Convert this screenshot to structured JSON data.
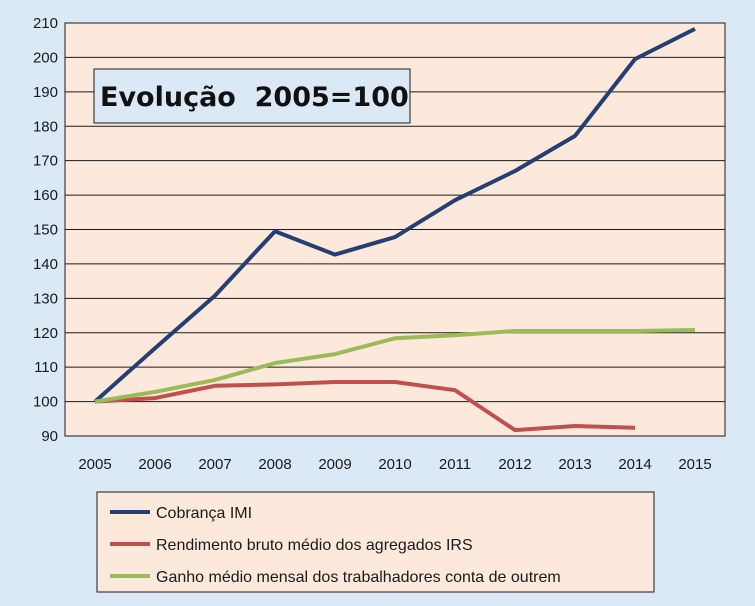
{
  "chart_data": {
    "type": "line",
    "title": "Evolução  2005=100",
    "xlabel": "",
    "ylabel": "",
    "categories": [
      "2005",
      "2006",
      "2007",
      "2008",
      "2009",
      "2010",
      "2011",
      "2012",
      "2013",
      "2014",
      "2015"
    ],
    "ylim": [
      90,
      210
    ],
    "yticks": [
      "90",
      "100",
      "110",
      "120",
      "130",
      "140",
      "150",
      "160",
      "170",
      "180",
      "190",
      "200",
      "210"
    ],
    "grid": true,
    "legend_position": "bottom",
    "series": [
      {
        "name": "Cobrança IMI",
        "color": "#243f73",
        "values": [
          100,
          115.5,
          130.8,
          149.5,
          142.7,
          147.8,
          158.5,
          167,
          177.2,
          199.5,
          208.3
        ]
      },
      {
        "name": "Rendimento bruto médio dos agregados IRS",
        "color": "#c0504d",
        "values": [
          100,
          101,
          104.6,
          105,
          105.7,
          105.7,
          103.3,
          91.7,
          92.9,
          92.4,
          null
        ]
      },
      {
        "name": "Ganho médio mensal dos trabalhadores conta de outrem",
        "color": "#9bbb59",
        "values": [
          100,
          102.8,
          106.3,
          111.2,
          113.8,
          118.4,
          119.3,
          120.5,
          120.5,
          120.5,
          120.8
        ]
      }
    ],
    "colors": {
      "page_background": "#dbe8f6",
      "plot_background": "#fde9dc",
      "title_box": "#dbe8f6",
      "legend_box": "#fde9dc",
      "grid": "#1a1a1a"
    }
  }
}
